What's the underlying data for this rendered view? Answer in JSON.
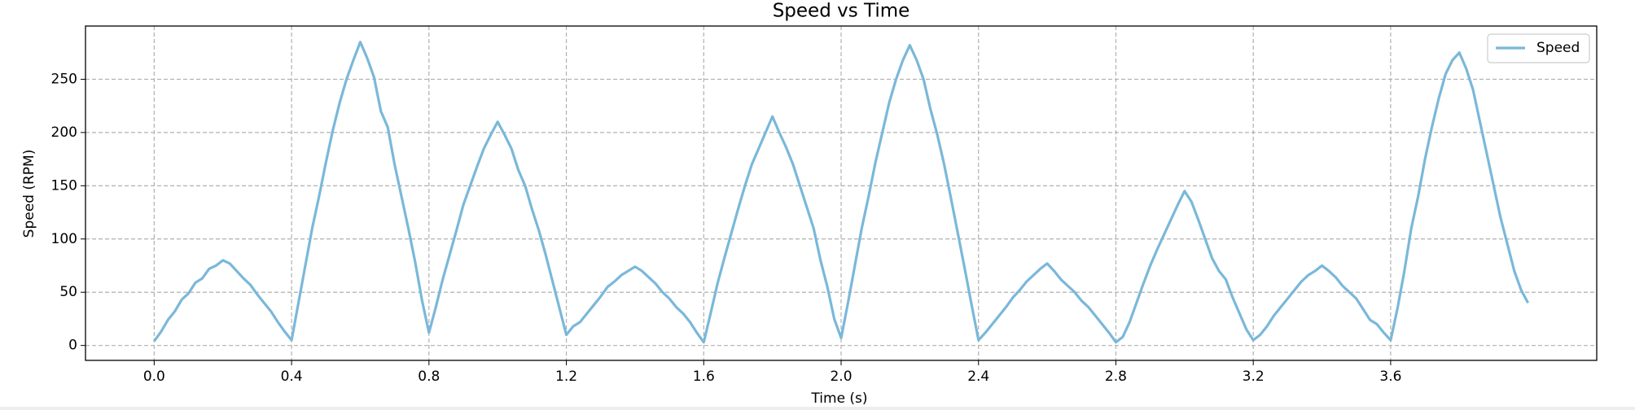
{
  "chart_data": {
    "type": "line",
    "title": "Speed vs Time",
    "x_label": "Time (s)",
    "y_label": "Speed (RPM)",
    "x": [
      0,
      0.02,
      0.04,
      0.06,
      0.08,
      0.1,
      0.12,
      0.14,
      0.16,
      0.18,
      0.2,
      0.22,
      0.24,
      0.26,
      0.28,
      0.3,
      0.32,
      0.34,
      0.36,
      0.38,
      0.4,
      0.42,
      0.44,
      0.46,
      0.48,
      0.5,
      0.52,
      0.54,
      0.56,
      0.58,
      0.6,
      0.62,
      0.64,
      0.66,
      0.68,
      0.7,
      0.72,
      0.74,
      0.76,
      0.78,
      0.8,
      0.82,
      0.84,
      0.86,
      0.88,
      0.9,
      0.92,
      0.94,
      0.96,
      0.98,
      1.0,
      1.02,
      1.04,
      1.06,
      1.08,
      1.1,
      1.12,
      1.14,
      1.16,
      1.18,
      1.2,
      1.22,
      1.24,
      1.26,
      1.28,
      1.3,
      1.32,
      1.34,
      1.36,
      1.38,
      1.4,
      1.42,
      1.44,
      1.46,
      1.48,
      1.5,
      1.52,
      1.54,
      1.56,
      1.58,
      1.6,
      1.62,
      1.64,
      1.66,
      1.68,
      1.7,
      1.72,
      1.74,
      1.76,
      1.78,
      1.8,
      1.82,
      1.84,
      1.86,
      1.88,
      1.9,
      1.92,
      1.94,
      1.96,
      1.98,
      2.0,
      2.02,
      2.04,
      2.06,
      2.08,
      2.1,
      2.12,
      2.14,
      2.16,
      2.18,
      2.2,
      2.22,
      2.24,
      2.26,
      2.28,
      2.3,
      2.32,
      2.34,
      2.36,
      2.38,
      2.4,
      2.42,
      2.44,
      2.46,
      2.48,
      2.5,
      2.52,
      2.54,
      2.56,
      2.58,
      2.6,
      2.62,
      2.64,
      2.66,
      2.68,
      2.7,
      2.72,
      2.74,
      2.76,
      2.78,
      2.8,
      2.82,
      2.84,
      2.86,
      2.88,
      2.9,
      2.92,
      2.94,
      2.96,
      2.98,
      3.0,
      3.02,
      3.04,
      3.06,
      3.08,
      3.1,
      3.12,
      3.14,
      3.16,
      3.18,
      3.2,
      3.22,
      3.24,
      3.26,
      3.28,
      3.3,
      3.32,
      3.34,
      3.36,
      3.38,
      3.4,
      3.42,
      3.44,
      3.46,
      3.48,
      3.5,
      3.52,
      3.54,
      3.56,
      3.58,
      3.6,
      3.62,
      3.64,
      3.66,
      3.68,
      3.7,
      3.72,
      3.74,
      3.76,
      3.78,
      3.8,
      3.82,
      3.84,
      3.86,
      3.88,
      3.9,
      3.92,
      3.94,
      3.96,
      3.98,
      4.0
    ],
    "series": [
      {
        "name": "Speed",
        "color": "#7ab8d9",
        "values": [
          4,
          13,
          24,
          32,
          43,
          49,
          59,
          63,
          72,
          75,
          80,
          77,
          70,
          63,
          57,
          48,
          40,
          32,
          22,
          13,
          5,
          40,
          75,
          110,
          140,
          172,
          202,
          228,
          250,
          268,
          285,
          270,
          252,
          220,
          205,
          170,
          140,
          110,
          78,
          42,
          12,
          36,
          62,
          85,
          108,
          132,
          150,
          168,
          185,
          198,
          210,
          198,
          185,
          165,
          150,
          128,
          108,
          85,
          60,
          35,
          10,
          18,
          22,
          30,
          38,
          46,
          55,
          60,
          66,
          70,
          74,
          70,
          64,
          58,
          50,
          44,
          36,
          30,
          22,
          12,
          3,
          30,
          58,
          82,
          105,
          128,
          150,
          170,
          185,
          200,
          215,
          200,
          186,
          170,
          150,
          130,
          110,
          80,
          55,
          25,
          7,
          40,
          75,
          110,
          140,
          172,
          200,
          228,
          250,
          268,
          282,
          268,
          250,
          222,
          198,
          170,
          138,
          105,
          72,
          38,
          5,
          12,
          20,
          28,
          36,
          45,
          52,
          60,
          66,
          72,
          77,
          70,
          62,
          56,
          50,
          42,
          36,
          28,
          20,
          12,
          3,
          8,
          22,
          40,
          58,
          75,
          90,
          104,
          118,
          132,
          145,
          135,
          118,
          100,
          82,
          70,
          62,
          45,
          30,
          15,
          5,
          10,
          18,
          28,
          36,
          44,
          52,
          60,
          66,
          70,
          75,
          70,
          64,
          56,
          50,
          44,
          34,
          24,
          20,
          12,
          5,
          35,
          70,
          110,
          140,
          175,
          205,
          232,
          255,
          268,
          275,
          260,
          240,
          210,
          180,
          150,
          120,
          95,
          70,
          52,
          40
        ]
      }
    ],
    "xlim": [
      -0.2,
      4.2
    ],
    "ylim": [
      -14,
      300
    ],
    "xticks": [
      {
        "value": 0,
        "label": "0.0"
      },
      0.4,
      0.8,
      1.2,
      1.6,
      {
        "value": 2,
        "label": "2.0"
      },
      2.4,
      2.8,
      3.2,
      3.6
    ],
    "yticks": [
      0,
      50,
      100,
      150,
      200,
      250
    ],
    "grid": true,
    "legend": "upper right"
  }
}
